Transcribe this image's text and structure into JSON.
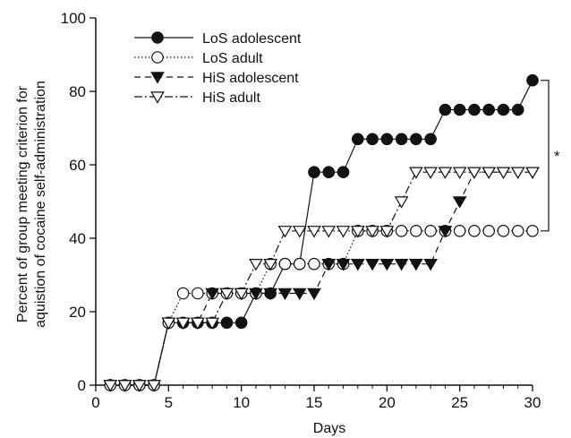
{
  "chart_data": {
    "type": "line",
    "xlabel": "Days",
    "ylabel_lines": [
      "Percent of group meeting criterion for",
      "aquistion of cocaine self-administration"
    ],
    "xlim": [
      0,
      30
    ],
    "ylim": [
      0,
      100
    ],
    "x_ticks": [
      0,
      5,
      10,
      15,
      20,
      25,
      30
    ],
    "y_ticks": [
      0,
      20,
      40,
      60,
      80,
      100
    ],
    "grid": false,
    "legend_position": "top-left",
    "significance": {
      "symbol": "*",
      "between": [
        83,
        42
      ],
      "x": 30
    },
    "series": [
      {
        "name": "LoS adolescent",
        "marker": "circle-filled",
        "line": "solid",
        "x": [
          1,
          2,
          3,
          4,
          5,
          6,
          7,
          8,
          9,
          10,
          11,
          12,
          13,
          14,
          15,
          16,
          17,
          18,
          19,
          20,
          21,
          22,
          23,
          24,
          25,
          26,
          27,
          28,
          29,
          30
        ],
        "values": [
          0,
          0,
          0,
          0,
          17,
          17,
          17,
          17,
          17,
          17,
          25,
          25,
          33,
          33,
          58,
          58,
          58,
          67,
          67,
          67,
          67,
          67,
          67,
          75,
          75,
          75,
          75,
          75,
          75,
          83
        ]
      },
      {
        "name": "LoS adult",
        "marker": "circle-open",
        "line": "dotted",
        "x": [
          1,
          2,
          3,
          4,
          5,
          6,
          7,
          8,
          9,
          10,
          11,
          12,
          13,
          14,
          15,
          16,
          17,
          18,
          19,
          20,
          21,
          22,
          23,
          24,
          25,
          26,
          27,
          28,
          29,
          30
        ],
        "values": [
          0,
          0,
          0,
          0,
          17,
          25,
          25,
          25,
          25,
          25,
          25,
          33,
          33,
          33,
          33,
          33,
          33,
          42,
          42,
          42,
          42,
          42,
          42,
          42,
          42,
          42,
          42,
          42,
          42,
          42
        ]
      },
      {
        "name": "HiS adolescent",
        "marker": "triangle-down-filled",
        "line": "dashed",
        "x": [
          1,
          2,
          3,
          4,
          5,
          6,
          7,
          8,
          9,
          10,
          11,
          12,
          13,
          14,
          15,
          16,
          17,
          18,
          19,
          20,
          21,
          22,
          23,
          24,
          25,
          26,
          27,
          28,
          29,
          30
        ],
        "values": [
          0,
          0,
          0,
          0,
          17,
          17,
          17,
          25,
          25,
          25,
          25,
          25,
          25,
          25,
          25,
          33,
          33,
          33,
          33,
          33,
          33,
          33,
          33,
          42,
          50,
          58,
          58,
          58,
          58,
          58
        ]
      },
      {
        "name": "HiS adult",
        "marker": "triangle-down-open",
        "line": "dashdot",
        "x": [
          1,
          2,
          3,
          4,
          5,
          6,
          7,
          8,
          9,
          10,
          11,
          12,
          13,
          14,
          15,
          16,
          17,
          18,
          19,
          20,
          21,
          22,
          23,
          24,
          25,
          26,
          27,
          28,
          29,
          30
        ],
        "values": [
          0,
          0,
          0,
          0,
          17,
          17,
          17,
          17,
          25,
          25,
          33,
          33,
          42,
          42,
          42,
          42,
          42,
          42,
          42,
          42,
          50,
          58,
          58,
          58,
          58,
          58,
          58,
          58,
          58,
          58
        ]
      }
    ]
  }
}
